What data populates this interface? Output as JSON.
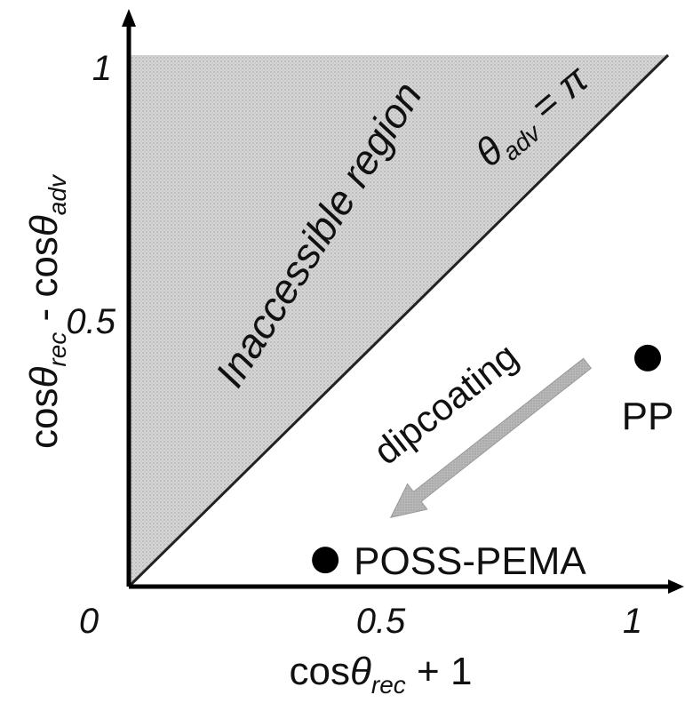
{
  "chart_data": {
    "type": "scatter",
    "xlim": [
      0,
      1
    ],
    "ylim": [
      0,
      1
    ],
    "x_ticks": [
      "0.5",
      "1"
    ],
    "y_ticks": [
      "0.5",
      "1"
    ],
    "origin_label": "0",
    "xlabel": {
      "main": "cos",
      "theta": "θ",
      "sub": "rec",
      "tail": " + 1"
    },
    "ylabel": {
      "main": "cos",
      "theta": "θ",
      "sub1": "rec",
      "mid": " - cos",
      "theta2": "θ",
      "sub2": "adv"
    },
    "points": [
      {
        "label": "PP",
        "x": 1.03,
        "y": 0.43
      },
      {
        "label": "POSS-PEMA",
        "x": 0.39,
        "y": 0.05
      }
    ],
    "region_label": "Inaccessible region",
    "boundary_label": {
      "theta": "θ",
      "sub": "adv",
      "rest": " = π"
    },
    "arrow_label": "dipcoating",
    "arrow": {
      "from": [
        0.91,
        0.42
      ],
      "to": [
        0.52,
        0.13
      ]
    },
    "colors": {
      "region_fill": "#cfcfcf",
      "axis": "#000000",
      "point": "#000000",
      "arrow": "#a8a8a8"
    }
  }
}
